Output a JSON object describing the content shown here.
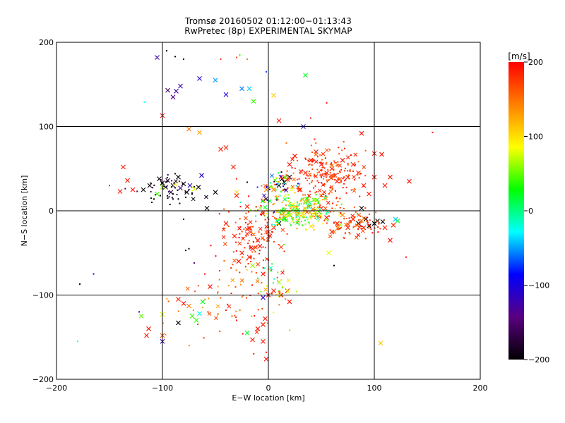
{
  "chart_data": {
    "type": "scatter",
    "title": "Tromsø 20160502 01:12:00−01:13:43",
    "subtitle": "RwPretec (8p) EXPERIMENTAL SKYMAP",
    "xlabel": "E−W location [km]",
    "ylabel": "N−S location [km]",
    "xlim": [
      -200,
      200
    ],
    "ylim": [
      -200,
      200
    ],
    "x_ticks": [
      -200,
      -100,
      0,
      100,
      200
    ],
    "y_ticks": [
      -200,
      -100,
      0,
      100,
      200
    ],
    "x_tick_labels": [
      "−200",
      "−100",
      "0",
      "100",
      "200"
    ],
    "y_tick_labels": [
      "−200",
      "−100",
      "0",
      "100",
      "200"
    ],
    "grid": true,
    "colorbar": {
      "label": "[m/s]",
      "range": [
        -200,
        200
      ],
      "ticks": [
        200,
        100,
        0,
        -100,
        -200
      ],
      "tick_labels": [
        "200",
        "100",
        "0",
        "−100",
        "−200"
      ],
      "colormap": [
        "#000000",
        "#5a0080",
        "#0000ff",
        "#00ffff",
        "#00ff00",
        "#ffff00",
        "#ff8000",
        "#ff0000"
      ]
    },
    "marker_note": "x markers and small dots; color = velocity in m/s",
    "points": [
      {
        "x": -105,
        "y": 182,
        "v": -120,
        "m": "x"
      },
      {
        "x": -96,
        "y": 190,
        "v": -190,
        "m": "d"
      },
      {
        "x": -88,
        "y": 183,
        "v": -200,
        "m": "d"
      },
      {
        "x": -80,
        "y": 180,
        "v": -195,
        "m": "d"
      },
      {
        "x": -45,
        "y": 180,
        "v": 180,
        "m": "d"
      },
      {
        "x": -30,
        "y": 182,
        "v": 170,
        "m": "d"
      },
      {
        "x": -27,
        "y": 185,
        "v": 40,
        "m": "d"
      },
      {
        "x": -20,
        "y": 180,
        "v": 150,
        "m": "d"
      },
      {
        "x": -2,
        "y": 165,
        "v": -70,
        "m": "d"
      },
      {
        "x": 35,
        "y": 161,
        "v": 20,
        "m": "x"
      },
      {
        "x": -95,
        "y": 143,
        "v": -160,
        "m": "x"
      },
      {
        "x": -90,
        "y": 135,
        "v": -140,
        "m": "x"
      },
      {
        "x": -87,
        "y": 142,
        "v": -130,
        "m": "x"
      },
      {
        "x": -83,
        "y": 148,
        "v": -120,
        "m": "x"
      },
      {
        "x": -65,
        "y": 157,
        "v": -110,
        "m": "x"
      },
      {
        "x": -50,
        "y": 155,
        "v": -50,
        "m": "x"
      },
      {
        "x": -40,
        "y": 138,
        "v": -100,
        "m": "x"
      },
      {
        "x": -25,
        "y": 145,
        "v": -60,
        "m": "x"
      },
      {
        "x": -18,
        "y": 145,
        "v": -40,
        "m": "x"
      },
      {
        "x": -14,
        "y": 130,
        "v": 40,
        "m": "x"
      },
      {
        "x": 5,
        "y": 137,
        "v": 110,
        "m": "x"
      },
      {
        "x": -100,
        "y": 113,
        "v": 190,
        "m": "x"
      },
      {
        "x": -117,
        "y": 129,
        "v": -20,
        "m": "d"
      },
      {
        "x": -75,
        "y": 97,
        "v": 150,
        "m": "x"
      },
      {
        "x": -65,
        "y": 93,
        "v": 130,
        "m": "x"
      },
      {
        "x": -45,
        "y": 73,
        "v": 190,
        "m": "x"
      },
      {
        "x": -40,
        "y": 75,
        "v": 185,
        "m": "x"
      },
      {
        "x": 10,
        "y": 107,
        "v": 190,
        "m": "x"
      },
      {
        "x": 33,
        "y": 100,
        "v": -120,
        "m": "x"
      },
      {
        "x": 40,
        "y": 110,
        "v": 180,
        "m": "d"
      },
      {
        "x": 55,
        "y": 128,
        "v": 190,
        "m": "d"
      },
      {
        "x": 88,
        "y": 92,
        "v": 190,
        "m": "x"
      },
      {
        "x": 155,
        "y": 93,
        "v": 190,
        "m": "d"
      },
      {
        "x": 107,
        "y": 67,
        "v": 190,
        "m": "x"
      },
      {
        "x": 100,
        "y": 68,
        "v": 190,
        "m": "x"
      },
      {
        "x": 133,
        "y": 35,
        "v": 190,
        "m": "x"
      },
      {
        "x": -137,
        "y": 52,
        "v": 190,
        "m": "x"
      },
      {
        "x": -150,
        "y": 30,
        "v": 190,
        "m": "d"
      },
      {
        "x": -140,
        "y": 23,
        "v": 190,
        "m": "x"
      },
      {
        "x": -128,
        "y": 25,
        "v": 190,
        "m": "x"
      },
      {
        "x": -133,
        "y": 36,
        "v": 190,
        "m": "x"
      },
      {
        "x": -118,
        "y": 25,
        "v": -195,
        "m": "x"
      },
      {
        "x": -112,
        "y": 30,
        "v": -200,
        "m": "x"
      },
      {
        "x": -103,
        "y": 38,
        "v": -200,
        "m": "x"
      },
      {
        "x": -100,
        "y": 33,
        "v": -200,
        "m": "x"
      },
      {
        "x": -97,
        "y": 28,
        "v": -190,
        "m": "x"
      },
      {
        "x": -95,
        "y": 36,
        "v": -180,
        "m": "x"
      },
      {
        "x": -92,
        "y": 22,
        "v": -170,
        "m": "x"
      },
      {
        "x": -90,
        "y": 30,
        "v": -200,
        "m": "x"
      },
      {
        "x": -85,
        "y": 40,
        "v": -200,
        "m": "x"
      },
      {
        "x": -83,
        "y": 27,
        "v": -150,
        "m": "x"
      },
      {
        "x": -80,
        "y": 32,
        "v": -200,
        "m": "x"
      },
      {
        "x": -77,
        "y": 22,
        "v": -200,
        "m": "x"
      },
      {
        "x": -74,
        "y": 30,
        "v": -110,
        "m": "x"
      },
      {
        "x": -66,
        "y": 28,
        "v": -200,
        "m": "x"
      },
      {
        "x": -63,
        "y": 42,
        "v": -110,
        "m": "x"
      },
      {
        "x": -58,
        "y": 3,
        "v": -200,
        "m": "x"
      },
      {
        "x": -50,
        "y": 22,
        "v": -200,
        "m": "x"
      },
      {
        "x": -105,
        "y": 20,
        "v": 40,
        "m": "x"
      },
      {
        "x": -100,
        "y": 28,
        "v": 60,
        "m": "x"
      },
      {
        "x": -88,
        "y": 32,
        "v": 100,
        "m": "x"
      },
      {
        "x": -70,
        "y": 26,
        "v": 80,
        "m": "x"
      },
      {
        "x": -33,
        "y": 52,
        "v": 190,
        "m": "x"
      },
      {
        "x": -30,
        "y": 38,
        "v": 190,
        "m": "d"
      },
      {
        "x": -30,
        "y": 22,
        "v": 100,
        "m": "x"
      },
      {
        "x": -110,
        "y": 10,
        "v": -200,
        "m": "d"
      },
      {
        "x": -108,
        "y": 14,
        "v": -200,
        "m": "d"
      },
      {
        "x": -95,
        "y": 15,
        "v": -200,
        "m": "d"
      },
      {
        "x": -85,
        "y": 14,
        "v": -200,
        "m": "d"
      },
      {
        "x": -78,
        "y": 16,
        "v": -200,
        "m": "d"
      },
      {
        "x": -102,
        "y": 18,
        "v": -200,
        "m": "d"
      },
      {
        "x": -90,
        "y": 20,
        "v": -200,
        "m": "d"
      },
      {
        "x": -72,
        "y": 20,
        "v": -200,
        "m": "d"
      },
      {
        "x": -88,
        "y": 44,
        "v": -200,
        "m": "d"
      },
      {
        "x": -80,
        "y": -10,
        "v": -200,
        "m": "d"
      },
      {
        "x": -75,
        "y": -45,
        "v": -200,
        "m": "d"
      },
      {
        "x": -78,
        "y": -47,
        "v": -200,
        "m": "d"
      },
      {
        "x": -70,
        "y": -62,
        "v": -150,
        "m": "d"
      },
      {
        "x": -165,
        "y": -75,
        "v": -100,
        "m": "d"
      },
      {
        "x": -178,
        "y": -87,
        "v": -200,
        "m": "d"
      },
      {
        "x": -180,
        "y": -155,
        "v": -30,
        "m": "d"
      },
      {
        "x": -120,
        "y": -125,
        "v": 50,
        "m": "x"
      },
      {
        "x": -122,
        "y": -120,
        "v": -110,
        "m": "d"
      },
      {
        "x": -100,
        "y": -123,
        "v": 80,
        "m": "x"
      },
      {
        "x": -85,
        "y": -105,
        "v": 190,
        "m": "x"
      },
      {
        "x": -80,
        "y": -110,
        "v": 190,
        "m": "x"
      },
      {
        "x": -75,
        "y": -113,
        "v": 150,
        "m": "x"
      },
      {
        "x": -72,
        "y": -125,
        "v": 40,
        "m": "x"
      },
      {
        "x": -68,
        "y": -130,
        "v": 40,
        "m": "x"
      },
      {
        "x": -65,
        "y": -122,
        "v": -20,
        "m": "x"
      },
      {
        "x": -62,
        "y": -108,
        "v": 20,
        "m": "x"
      },
      {
        "x": -57,
        "y": -120,
        "v": 180,
        "m": "d"
      },
      {
        "x": -85,
        "y": -133,
        "v": -200,
        "m": "x"
      },
      {
        "x": -100,
        "y": -148,
        "v": 160,
        "m": "x"
      },
      {
        "x": -113,
        "y": -140,
        "v": 190,
        "m": "x"
      },
      {
        "x": -115,
        "y": -148,
        "v": 190,
        "m": "x"
      },
      {
        "x": -100,
        "y": -155,
        "v": -120,
        "m": "x"
      },
      {
        "x": -97,
        "y": -147,
        "v": 140,
        "m": "d"
      },
      {
        "x": -55,
        "y": -90,
        "v": 190,
        "m": "x"
      },
      {
        "x": -60,
        "y": -75,
        "v": 190,
        "m": "d"
      },
      {
        "x": -48,
        "y": -98,
        "v": 20,
        "m": "d"
      },
      {
        "x": -35,
        "y": -98,
        "v": 190,
        "m": "d"
      },
      {
        "x": -40,
        "y": -118,
        "v": 190,
        "m": "d"
      },
      {
        "x": -30,
        "y": -130,
        "v": 190,
        "m": "d"
      },
      {
        "x": -20,
        "y": -145,
        "v": 20,
        "m": "x"
      },
      {
        "x": -15,
        "y": -153,
        "v": 190,
        "m": "x"
      },
      {
        "x": -10,
        "y": -140,
        "v": 190,
        "m": "x"
      },
      {
        "x": -5,
        "y": -135,
        "v": 190,
        "m": "x"
      },
      {
        "x": -5,
        "y": -155,
        "v": 190,
        "m": "x"
      },
      {
        "x": -3,
        "y": -128,
        "v": 190,
        "m": "x"
      },
      {
        "x": -5,
        "y": -103,
        "v": -110,
        "m": "x"
      },
      {
        "x": 0,
        "y": -100,
        "v": 190,
        "m": "x"
      },
      {
        "x": 5,
        "y": -95,
        "v": 190,
        "m": "x"
      },
      {
        "x": 12,
        "y": -100,
        "v": 190,
        "m": "x"
      },
      {
        "x": 18,
        "y": -95,
        "v": 190,
        "m": "x"
      },
      {
        "x": 20,
        "y": -108,
        "v": 190,
        "m": "x"
      },
      {
        "x": -2,
        "y": -176,
        "v": 190,
        "m": "x"
      },
      {
        "x": -2,
        "y": -168,
        "v": 190,
        "m": "d"
      },
      {
        "x": 106,
        "y": -157,
        "v": 110,
        "m": "x"
      },
      {
        "x": 57,
        "y": -50,
        "v": 80,
        "m": "x"
      },
      {
        "x": 62,
        "y": -65,
        "v": -200,
        "m": "d"
      },
      {
        "x": 130,
        "y": -55,
        "v": 190,
        "m": "d"
      },
      {
        "x": 115,
        "y": -35,
        "v": 190,
        "m": "x"
      },
      {
        "x": 122,
        "y": -12,
        "v": 20,
        "m": "x"
      },
      {
        "x": 120,
        "y": -10,
        "v": -40,
        "m": "x"
      },
      {
        "x": 118,
        "y": -17,
        "v": 180,
        "m": "x"
      },
      {
        "x": 10,
        "y": 30,
        "v": -200,
        "m": "x"
      },
      {
        "x": 13,
        "y": 38,
        "v": -200,
        "m": "x"
      },
      {
        "x": 15,
        "y": 34,
        "v": -200,
        "m": "x"
      },
      {
        "x": 18,
        "y": 37,
        "v": 190,
        "m": "x"
      },
      {
        "x": 12,
        "y": 40,
        "v": 190,
        "m": "x"
      },
      {
        "x": 20,
        "y": 40,
        "v": -200,
        "m": "x"
      },
      {
        "x": 5,
        "y": 25,
        "v": 150,
        "m": "x"
      },
      {
        "x": 8,
        "y": 15,
        "v": 140,
        "m": "x"
      },
      {
        "x": -2,
        "y": 25,
        "v": 140,
        "m": "x"
      },
      {
        "x": -5,
        "y": 12,
        "v": 190,
        "m": "x"
      },
      {
        "x": -30,
        "y": 18,
        "v": 190,
        "m": "x"
      },
      {
        "x": -20,
        "y": 5,
        "v": 190,
        "m": "x"
      },
      {
        "x": -40,
        "y": -15,
        "v": 190,
        "m": "x"
      },
      {
        "x": -32,
        "y": -30,
        "v": 190,
        "m": "x"
      },
      {
        "x": -20,
        "y": -22,
        "v": 190,
        "m": "x"
      },
      {
        "x": -10,
        "y": -35,
        "v": 190,
        "m": "x"
      },
      {
        "x": -8,
        "y": -42,
        "v": 190,
        "m": "x"
      },
      {
        "x": -15,
        "y": -45,
        "v": 190,
        "m": "x"
      },
      {
        "x": 0,
        "y": -25,
        "v": 190,
        "m": "x"
      },
      {
        "x": 5,
        "y": -20,
        "v": 190,
        "m": "x"
      },
      {
        "x": 10,
        "y": -15,
        "v": -200,
        "m": "x"
      },
      {
        "x": 15,
        "y": -10,
        "v": 40,
        "m": "x"
      },
      {
        "x": 20,
        "y": -5,
        "v": 60,
        "m": "x"
      },
      {
        "x": 25,
        "y": 0,
        "v": 80,
        "m": "x"
      },
      {
        "x": 28,
        "y": -12,
        "v": 120,
        "m": "x"
      },
      {
        "x": 33,
        "y": -3,
        "v": 100,
        "m": "x"
      },
      {
        "x": 35,
        "y": 10,
        "v": 40,
        "m": "x"
      },
      {
        "x": 38,
        "y": 5,
        "v": -20,
        "m": "x"
      },
      {
        "x": 42,
        "y": 2,
        "v": 150,
        "m": "x"
      },
      {
        "x": 45,
        "y": -5,
        "v": 180,
        "m": "x"
      },
      {
        "x": 47,
        "y": 10,
        "v": 100,
        "m": "x"
      },
      {
        "x": 50,
        "y": 3,
        "v": 190,
        "m": "x"
      },
      {
        "x": 55,
        "y": -8,
        "v": 190,
        "m": "x"
      },
      {
        "x": 60,
        "y": -25,
        "v": 190,
        "m": "x"
      },
      {
        "x": 65,
        "y": -15,
        "v": 190,
        "m": "x"
      },
      {
        "x": 70,
        "y": -5,
        "v": 150,
        "m": "x"
      },
      {
        "x": 75,
        "y": -20,
        "v": 190,
        "m": "x"
      },
      {
        "x": 80,
        "y": -10,
        "v": 190,
        "m": "x"
      },
      {
        "x": 88,
        "y": 3,
        "v": -200,
        "m": "x"
      },
      {
        "x": 92,
        "y": -10,
        "v": -200,
        "m": "x"
      },
      {
        "x": 95,
        "y": -18,
        "v": -200,
        "m": "x"
      },
      {
        "x": 100,
        "y": -15,
        "v": -200,
        "m": "x"
      },
      {
        "x": 103,
        "y": -12,
        "v": -200,
        "m": "x"
      },
      {
        "x": 108,
        "y": -13,
        "v": -200,
        "m": "x"
      },
      {
        "x": 85,
        "y": -15,
        "v": -200,
        "m": "x"
      },
      {
        "x": 90,
        "y": -20,
        "v": 190,
        "m": "x"
      },
      {
        "x": 110,
        "y": -20,
        "v": 190,
        "m": "x"
      },
      {
        "x": 30,
        "y": 25,
        "v": 190,
        "m": "x"
      },
      {
        "x": 40,
        "y": 60,
        "v": 190,
        "m": "x"
      },
      {
        "x": 45,
        "y": 70,
        "v": 190,
        "m": "x"
      },
      {
        "x": 50,
        "y": 55,
        "v": 190,
        "m": "x"
      },
      {
        "x": 55,
        "y": 45,
        "v": 190,
        "m": "x"
      },
      {
        "x": 60,
        "y": 50,
        "v": 190,
        "m": "x"
      },
      {
        "x": 65,
        "y": 35,
        "v": 190,
        "m": "x"
      },
      {
        "x": 70,
        "y": 60,
        "v": 190,
        "m": "x"
      },
      {
        "x": 75,
        "y": 40,
        "v": 190,
        "m": "x"
      },
      {
        "x": 80,
        "y": 55,
        "v": 190,
        "m": "x"
      },
      {
        "x": 85,
        "y": 45,
        "v": 190,
        "m": "x"
      },
      {
        "x": 90,
        "y": 30,
        "v": 190,
        "m": "x"
      },
      {
        "x": 95,
        "y": 20,
        "v": 190,
        "m": "x"
      },
      {
        "x": 100,
        "y": 40,
        "v": 190,
        "m": "x"
      },
      {
        "x": 110,
        "y": 30,
        "v": 190,
        "m": "x"
      },
      {
        "x": 115,
        "y": 40,
        "v": 190,
        "m": "x"
      },
      {
        "x": 20,
        "y": 55,
        "v": 190,
        "m": "x"
      },
      {
        "x": 25,
        "y": 65,
        "v": 190,
        "m": "x"
      },
      {
        "x": 35,
        "y": 45,
        "v": 190,
        "m": "x"
      },
      {
        "x": -28,
        "y": -60,
        "v": 190,
        "m": "x"
      },
      {
        "x": -20,
        "y": -70,
        "v": 100,
        "m": "d"
      },
      {
        "x": -15,
        "y": -65,
        "v": 60,
        "m": "x"
      },
      {
        "x": -10,
        "y": -80,
        "v": 20,
        "m": "d"
      },
      {
        "x": -5,
        "y": -75,
        "v": 190,
        "m": "x"
      },
      {
        "x": -25,
        "y": -50,
        "v": 190,
        "m": "x"
      },
      {
        "x": -18,
        "y": -55,
        "v": 190,
        "m": "x"
      }
    ]
  }
}
